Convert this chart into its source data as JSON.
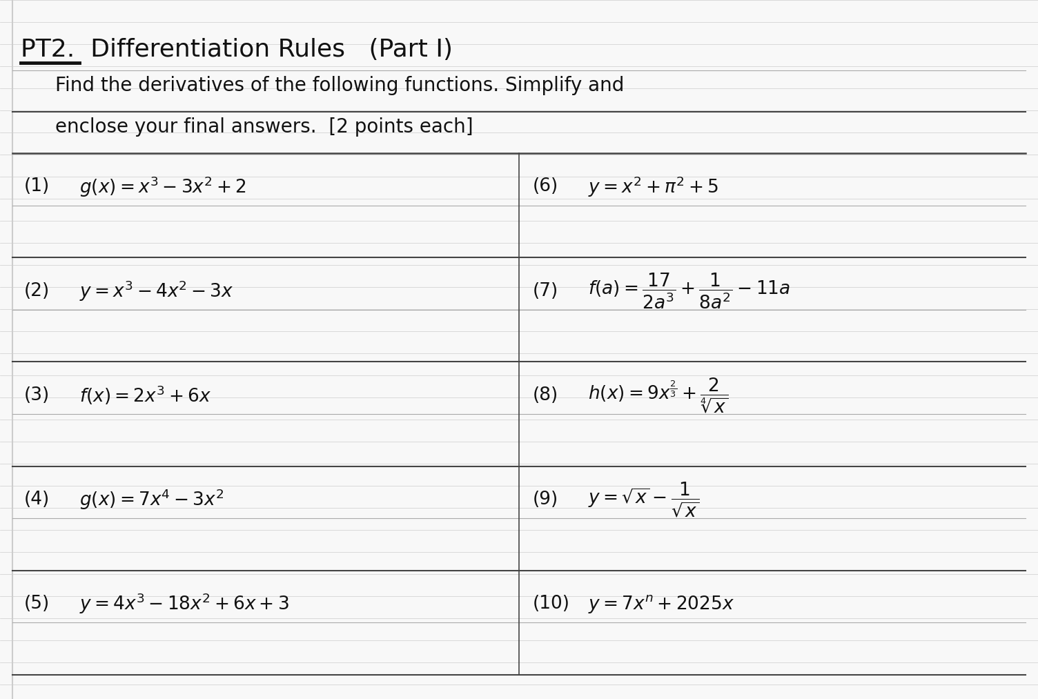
{
  "bg_color": "#f8f8f8",
  "line_color_dark": "#444444",
  "line_color_light": "#aaaaaa",
  "text_color": "#111111",
  "font_size_title": 26,
  "font_size_instr": 20,
  "font_size_expr": 19,
  "title_text": "PT2.  Differentiation Rules   (Part I)",
  "instr1": "Find the derivatives of the following functions. Simplify and",
  "instr2": "enclose your final answers.  [2 points each]",
  "left_exprs": [
    [
      "(1)",
      "$g(x) = x^3 - 3x^2 + 2$"
    ],
    [
      "(2)",
      "$y = x^3 - 4x^2 - 3x$"
    ],
    [
      "(3)",
      "$f(x) = 2x^3 + 6x$"
    ],
    [
      "(4)",
      "$g(x) = 7x^4 - 3x^2$"
    ],
    [
      "(5)",
      "$y = 4x^3 - 18x^2 + 6x + 3$"
    ]
  ],
  "right_exprs": [
    [
      "(6)",
      "$y = x^2 + \\pi^2 + 5$"
    ],
    [
      "(7)",
      "$f(a) = \\dfrac{17}{2a^3} + \\dfrac{1}{8a^2} - 11a$"
    ],
    [
      "(8)",
      "$h(x) = 9x^{\\frac{2}{3}} + \\dfrac{2}{\\sqrt[4]{x}}$"
    ],
    [
      "(9)",
      "$y = \\sqrt{x} - \\dfrac{1}{\\sqrt{x}}$"
    ],
    [
      "(10)",
      "$y = 7x^n + 2025x$"
    ]
  ]
}
